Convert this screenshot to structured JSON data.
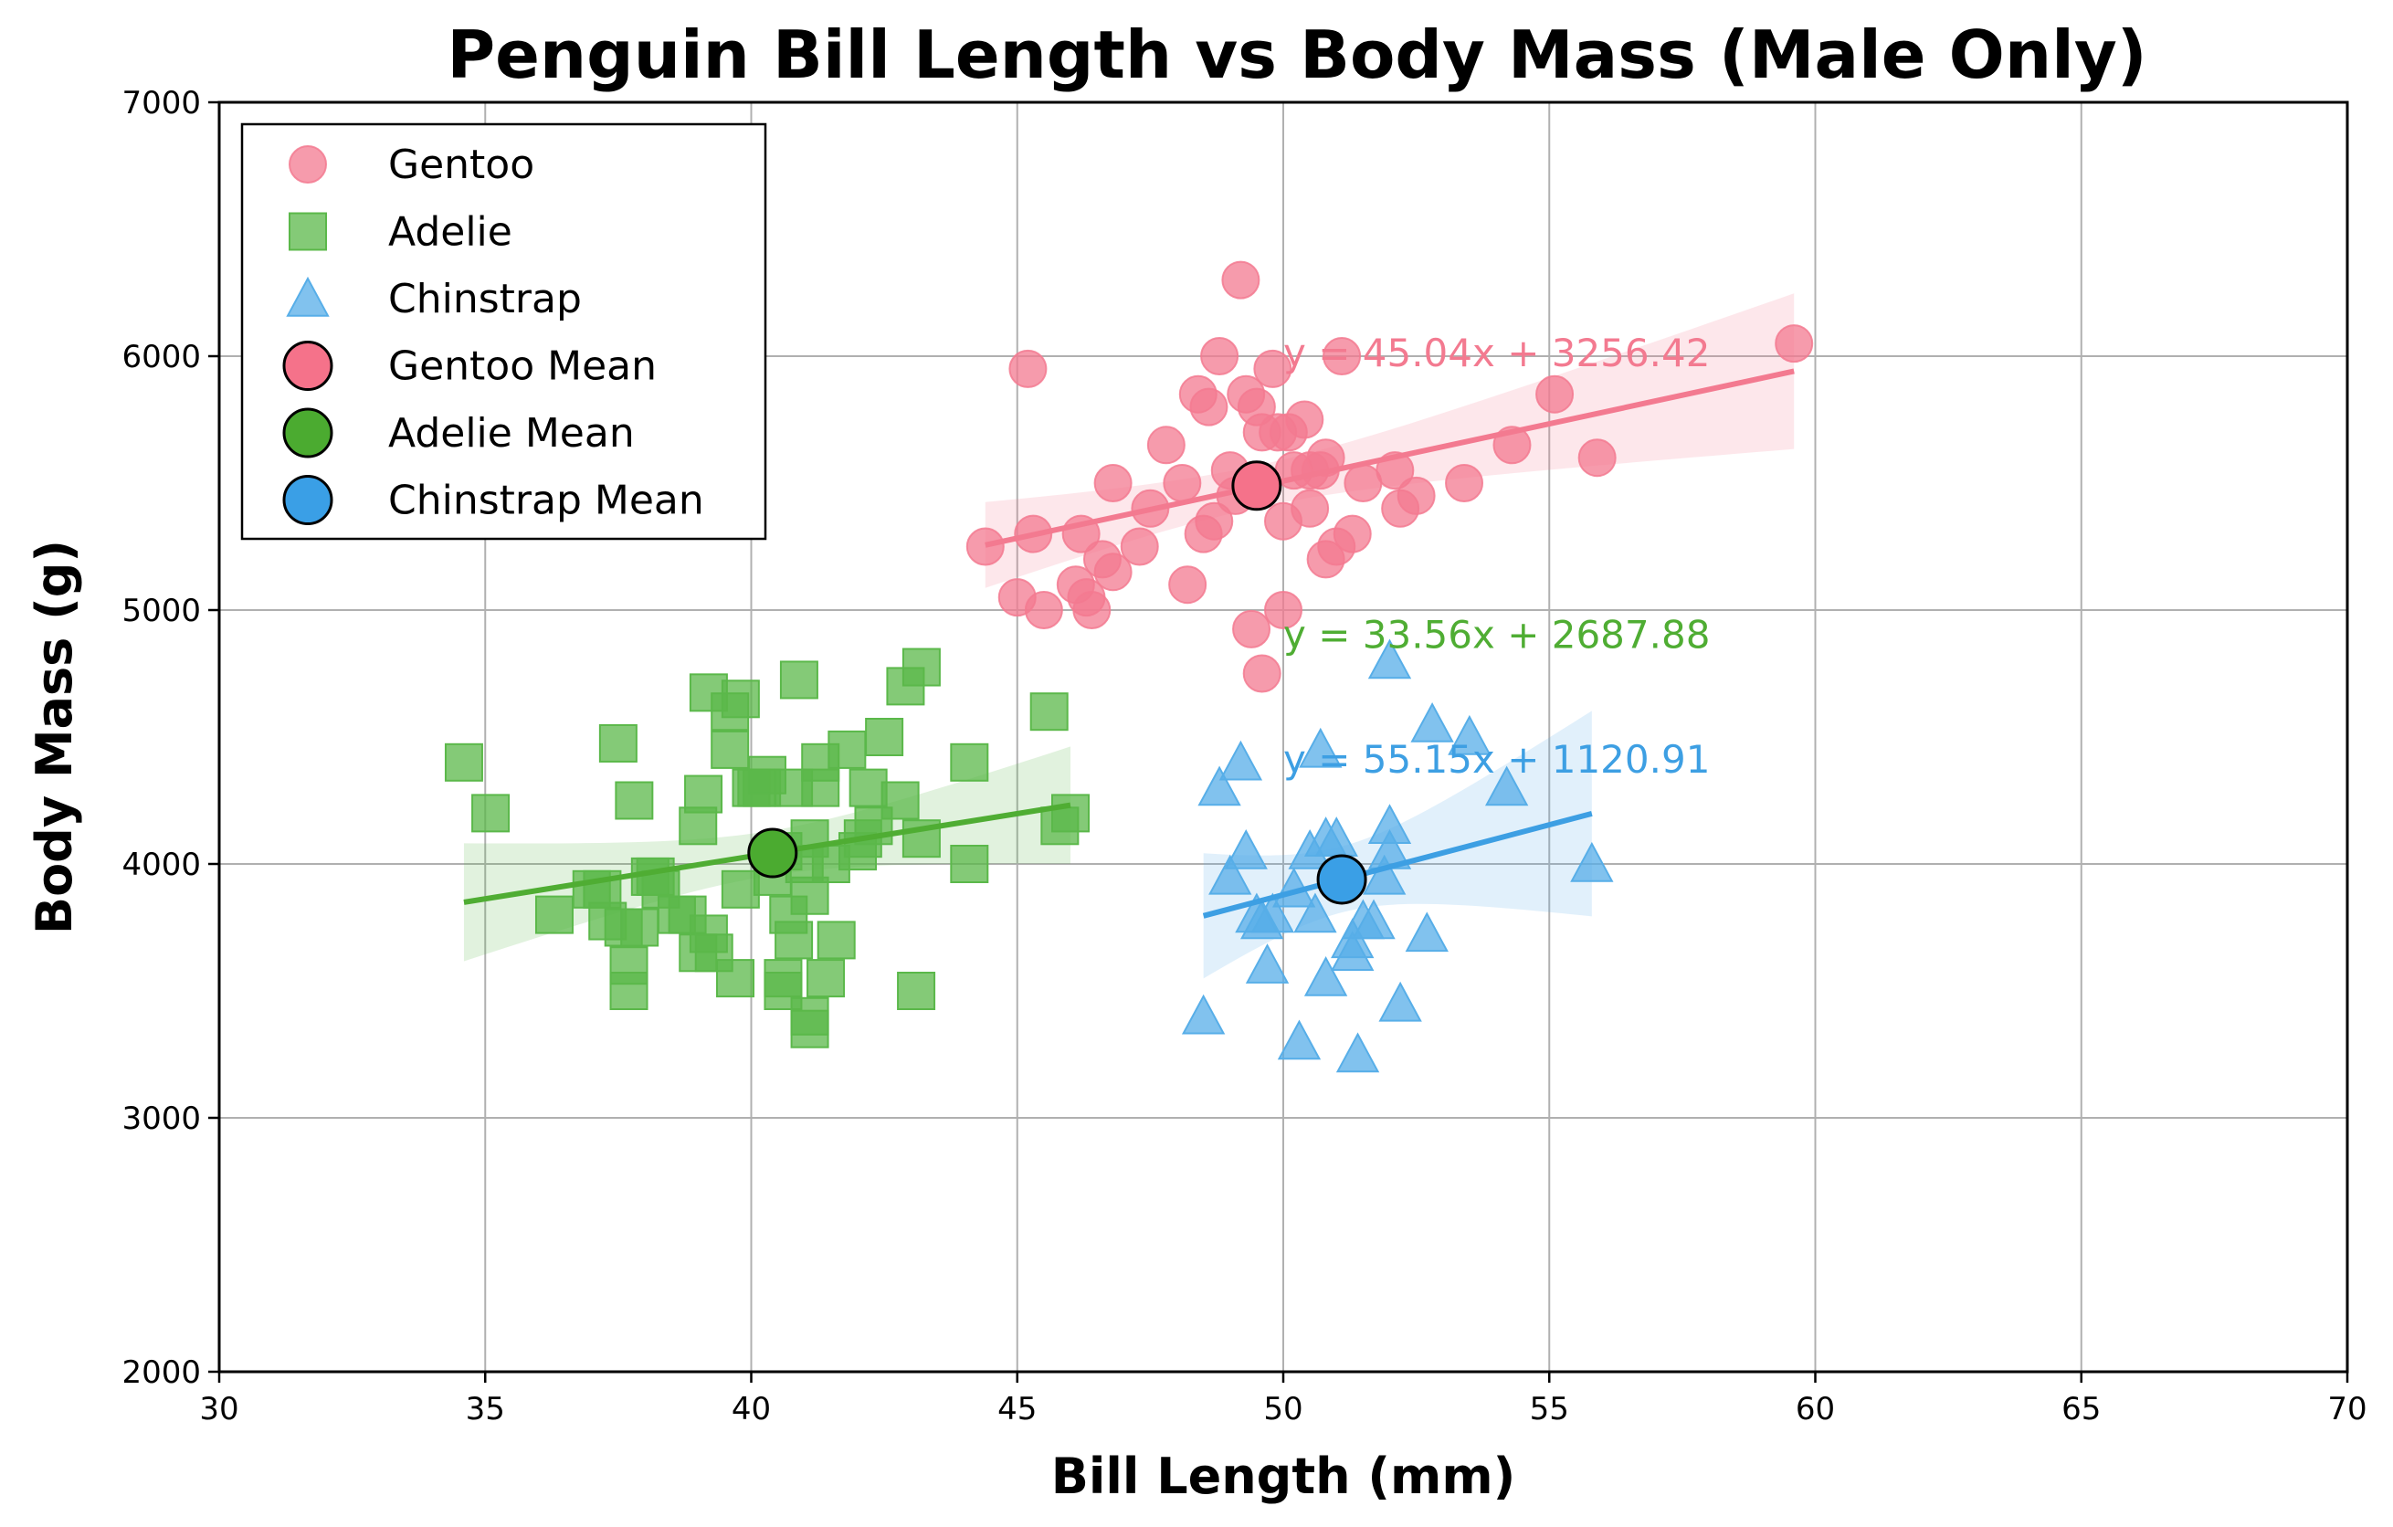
{
  "chart_data": {
    "type": "scatter",
    "title": "Penguin Bill Length vs Body Mass (Male Only)",
    "xlabel": "Bill Length (mm)",
    "ylabel": "Body Mass (g)",
    "xlim": [
      30,
      70
    ],
    "ylim": [
      2000,
      7000
    ],
    "xticks": [
      30,
      35,
      40,
      45,
      50,
      55,
      60,
      65,
      70
    ],
    "yticks": [
      2000,
      3000,
      4000,
      5000,
      6000,
      7000
    ],
    "grid": true,
    "legend_position": "top-left",
    "series": [
      {
        "name": "Gentoo",
        "marker": "circle",
        "color": "#f37a90",
        "points": [
          [
            44.4,
            5250
          ],
          [
            45.0,
            5050
          ],
          [
            45.2,
            5950
          ],
          [
            45.3,
            5300
          ],
          [
            45.5,
            5000
          ],
          [
            46.1,
            5100
          ],
          [
            46.2,
            5300
          ],
          [
            46.3,
            5050
          ],
          [
            46.4,
            5000
          ],
          [
            46.6,
            5200
          ],
          [
            46.8,
            5500
          ],
          [
            46.8,
            5150
          ],
          [
            47.3,
            5250
          ],
          [
            47.5,
            5400
          ],
          [
            47.8,
            5650
          ],
          [
            48.1,
            5500
          ],
          [
            48.2,
            5100
          ],
          [
            48.4,
            5850
          ],
          [
            48.5,
            5300
          ],
          [
            48.6,
            5800
          ],
          [
            48.7,
            5350
          ],
          [
            48.8,
            6000
          ],
          [
            49.0,
            5550
          ],
          [
            49.1,
            5450
          ],
          [
            49.2,
            6300
          ],
          [
            49.3,
            5850
          ],
          [
            49.4,
            4925
          ],
          [
            49.5,
            5800
          ],
          [
            49.6,
            4750
          ],
          [
            49.6,
            5700
          ],
          [
            49.8,
            5950
          ],
          [
            49.9,
            5700
          ],
          [
            50.0,
            5350
          ],
          [
            50.0,
            5000
          ],
          [
            50.1,
            5700
          ],
          [
            50.2,
            5550
          ],
          [
            50.4,
            5750
          ],
          [
            50.5,
            5400
          ],
          [
            50.5,
            5550
          ],
          [
            50.7,
            5550
          ],
          [
            50.8,
            5600
          ],
          [
            50.8,
            5200
          ],
          [
            51.0,
            5250
          ],
          [
            51.1,
            6000
          ],
          [
            51.3,
            5300
          ],
          [
            51.5,
            5500
          ],
          [
            52.1,
            5550
          ],
          [
            52.2,
            5400
          ],
          [
            52.5,
            5450
          ],
          [
            53.4,
            5500
          ],
          [
            54.3,
            5650
          ],
          [
            55.1,
            5850
          ],
          [
            55.9,
            5600
          ],
          [
            59.6,
            6050
          ]
        ],
        "mean": [
          49.5,
          5490
        ],
        "fit_line": {
          "slope": 45.04,
          "intercept": 3256.42,
          "x_range": [
            44.4,
            59.6
          ]
        },
        "equation": "y = 45.04x + 3256.42",
        "equation_color": "#f37a90"
      },
      {
        "name": "Adelie",
        "marker": "square",
        "color": "#5bb84a",
        "points": [
          [
            34.6,
            4400
          ],
          [
            35.1,
            4200
          ],
          [
            36.3,
            3800
          ],
          [
            37.0,
            3900
          ],
          [
            37.2,
            3900
          ],
          [
            37.3,
            3775
          ],
          [
            37.5,
            4475
          ],
          [
            37.6,
            3750
          ],
          [
            37.7,
            3600
          ],
          [
            37.7,
            3500
          ],
          [
            37.8,
            4250
          ],
          [
            37.9,
            3750
          ],
          [
            38.1,
            3950
          ],
          [
            38.2,
            3950
          ],
          [
            38.3,
            3900
          ],
          [
            38.6,
            3800
          ],
          [
            38.8,
            3800
          ],
          [
            39.0,
            3650
          ],
          [
            39.0,
            4150
          ],
          [
            39.1,
            4275
          ],
          [
            39.2,
            3725
          ],
          [
            39.2,
            4675
          ],
          [
            39.3,
            3650
          ],
          [
            39.6,
            4450
          ],
          [
            39.6,
            4600
          ],
          [
            39.7,
            3550
          ],
          [
            39.8,
            4650
          ],
          [
            39.8,
            3900
          ],
          [
            40.0,
            4300
          ],
          [
            40.1,
            4300
          ],
          [
            40.2,
            4300
          ],
          [
            40.3,
            4350
          ],
          [
            40.4,
            3950
          ],
          [
            40.6,
            3550
          ],
          [
            40.6,
            4050
          ],
          [
            40.6,
            3500
          ],
          [
            40.7,
            3800
          ],
          [
            40.8,
            4300
          ],
          [
            40.8,
            3700
          ],
          [
            40.9,
            4725
          ],
          [
            41.0,
            4000
          ],
          [
            41.1,
            3350
          ],
          [
            41.1,
            3400
          ],
          [
            41.1,
            4100
          ],
          [
            41.1,
            3875
          ],
          [
            41.3,
            4300
          ],
          [
            41.3,
            4400
          ],
          [
            41.4,
            3550
          ],
          [
            41.5,
            4000
          ],
          [
            41.6,
            3700
          ],
          [
            41.8,
            4450
          ],
          [
            42.0,
            4050
          ],
          [
            42.1,
            4100
          ],
          [
            42.2,
            4300
          ],
          [
            42.3,
            4150
          ],
          [
            42.5,
            4500
          ],
          [
            42.8,
            4250
          ],
          [
            42.9,
            4700
          ],
          [
            43.1,
            3500
          ],
          [
            43.2,
            4775
          ],
          [
            43.2,
            4100
          ],
          [
            44.1,
            4000
          ],
          [
            44.1,
            4400
          ],
          [
            45.6,
            4600
          ],
          [
            45.8,
            4150
          ],
          [
            46.0,
            4200
          ]
        ],
        "mean": [
          40.4,
          4043
        ],
        "fit_line": {
          "slope": 33.56,
          "intercept": 2687.88,
          "x_range": [
            34.6,
            46.0
          ]
        },
        "equation": "y = 33.56x + 2687.88",
        "equation_color": "#4fad33"
      },
      {
        "name": "Chinstrap",
        "marker": "triangle",
        "color": "#57aee8",
        "points": [
          [
            48.5,
            3400
          ],
          [
            48.8,
            4300
          ],
          [
            49.0,
            3950
          ],
          [
            49.2,
            4400
          ],
          [
            49.3,
            4050
          ],
          [
            49.5,
            3800
          ],
          [
            49.6,
            3775
          ],
          [
            49.7,
            3600
          ],
          [
            49.8,
            3800
          ],
          [
            50.2,
            3900
          ],
          [
            50.3,
            3300
          ],
          [
            50.5,
            4050
          ],
          [
            50.6,
            3800
          ],
          [
            50.7,
            4450
          ],
          [
            50.8,
            4100
          ],
          [
            50.8,
            3550
          ],
          [
            51.0,
            4100
          ],
          [
            51.3,
            3650
          ],
          [
            51.3,
            3700
          ],
          [
            51.4,
            3250
          ],
          [
            51.5,
            3775
          ],
          [
            51.7,
            3775
          ],
          [
            51.9,
            3950
          ],
          [
            52.0,
            4800
          ],
          [
            52.0,
            4050
          ],
          [
            52.0,
            4150
          ],
          [
            52.2,
            3450
          ],
          [
            52.7,
            3725
          ],
          [
            52.8,
            4550
          ],
          [
            53.5,
            4500
          ],
          [
            54.2,
            4300
          ],
          [
            55.8,
            4000
          ]
        ],
        "mean": [
          51.1,
          3939
        ],
        "fit_line": {
          "slope": 55.15,
          "intercept": 1120.91,
          "x_range": [
            48.5,
            55.8
          ]
        },
        "equation": "y = 55.15x + 1120.91",
        "equation_color": "#3d9fe3"
      }
    ],
    "legend": [
      {
        "label": "Gentoo",
        "marker": "circle",
        "color": "#f37a90"
      },
      {
        "label": "Adelie",
        "marker": "square",
        "color": "#5bb84a"
      },
      {
        "label": "Chinstrap",
        "marker": "triangle",
        "color": "#57aee8"
      },
      {
        "label": "Gentoo Mean",
        "marker": "mean-circle",
        "color": "#f5728a"
      },
      {
        "label": "Adelie Mean",
        "marker": "mean-circle",
        "color": "#4bab30"
      },
      {
        "label": "Chinstrap Mean",
        "marker": "mean-circle",
        "color": "#3a9fe6"
      }
    ]
  }
}
